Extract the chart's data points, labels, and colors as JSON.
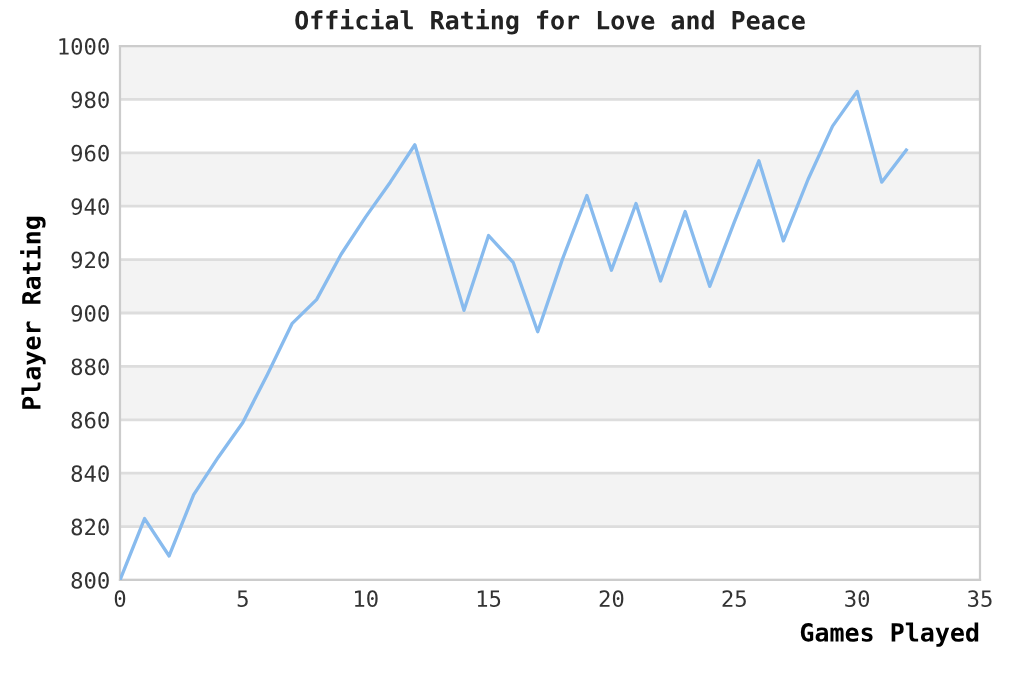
{
  "chart_data": {
    "type": "line",
    "title": "Official Rating for Love and Peace",
    "xlabel": "Games Played",
    "ylabel": "Player Rating",
    "x": [
      0,
      1,
      2,
      3,
      4,
      5,
      6,
      7,
      8,
      9,
      10,
      11,
      12,
      13,
      14,
      15,
      16,
      17,
      18,
      19,
      20,
      21,
      22,
      23,
      24,
      25,
      26,
      27,
      28,
      29,
      30,
      31,
      32
    ],
    "series": [
      {
        "color": "#88bbee",
        "values": [
          800,
          823,
          809,
          832,
          846,
          859,
          877,
          896,
          905,
          922,
          936,
          949,
          963,
          932,
          901,
          929,
          919,
          893,
          920,
          944,
          916,
          941,
          912,
          938,
          910,
          934,
          957,
          927,
          950,
          970,
          983,
          949,
          961
        ]
      }
    ],
    "xlim": [
      0,
      35
    ],
    "xticks": [
      0,
      5,
      10,
      15,
      20,
      25,
      30,
      35
    ],
    "ylim": [
      800,
      1000
    ],
    "yticks": [
      800,
      820,
      840,
      860,
      880,
      900,
      920,
      940,
      960,
      980,
      1000
    ],
    "grid": "y",
    "marker": "none",
    "line_style": "solid"
  }
}
